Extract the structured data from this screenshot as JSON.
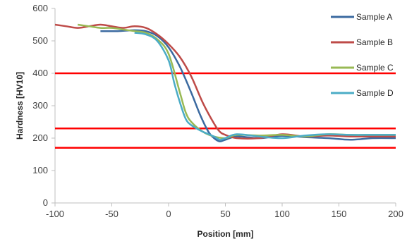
{
  "chart_data": {
    "type": "line",
    "title": "",
    "xlabel": "Position [mm]",
    "ylabel": "Hardness [HV10]",
    "xlim": [
      -100,
      200
    ],
    "ylim": [
      0,
      600
    ],
    "x_ticks": [
      -100,
      -50,
      0,
      50,
      100,
      150,
      200
    ],
    "y_ticks": [
      0,
      100,
      200,
      300,
      400,
      500,
      600
    ],
    "grid": false,
    "legend_position": "top-right",
    "reference_lines": {
      "color": "#FF0000",
      "values": [
        400,
        230,
        170
      ]
    },
    "series": [
      {
        "name": "Sample A",
        "color": "#3B6AA0",
        "x": [
          -60,
          -45,
          -30,
          -20,
          -10,
          0,
          10,
          20,
          28,
          35,
          40,
          45,
          50,
          60,
          80,
          100,
          120,
          140,
          160,
          180,
          200
        ],
        "y": [
          530,
          530,
          533,
          530,
          515,
          480,
          420,
          340,
          270,
          220,
          200,
          190,
          195,
          205,
          200,
          207,
          203,
          200,
          195,
          200,
          200
        ]
      },
      {
        "name": "Sample B",
        "color": "#BE4B48",
        "x": [
          -100,
          -90,
          -80,
          -70,
          -60,
          -50,
          -40,
          -30,
          -20,
          -10,
          0,
          10,
          20,
          30,
          40,
          45,
          50,
          60,
          80,
          100,
          120,
          140,
          160,
          180,
          200
        ],
        "y": [
          550,
          545,
          540,
          545,
          550,
          545,
          540,
          545,
          540,
          520,
          490,
          450,
          390,
          310,
          245,
          220,
          210,
          200,
          200,
          212,
          205,
          208,
          205,
          205,
          205
        ]
      },
      {
        "name": "Sample C",
        "color": "#98B954",
        "x": [
          -80,
          -70,
          -60,
          -50,
          -40,
          -30,
          -20,
          -10,
          0,
          10,
          15,
          20,
          30,
          40,
          50,
          60,
          80,
          100,
          120,
          140,
          160,
          180,
          200
        ],
        "y": [
          550,
          545,
          540,
          540,
          535,
          530,
          525,
          505,
          460,
          340,
          280,
          250,
          220,
          205,
          200,
          210,
          208,
          210,
          205,
          212,
          210,
          210,
          210
        ]
      },
      {
        "name": "Sample D",
        "color": "#4BACC6",
        "x": [
          -30,
          -20,
          -10,
          0,
          5,
          10,
          15,
          20,
          30,
          40,
          45,
          50,
          60,
          80,
          100,
          120,
          140,
          160,
          180,
          200
        ],
        "y": [
          525,
          520,
          500,
          440,
          370,
          310,
          260,
          240,
          220,
          205,
          195,
          200,
          212,
          205,
          200,
          208,
          212,
          210,
          210,
          210
        ]
      }
    ]
  }
}
